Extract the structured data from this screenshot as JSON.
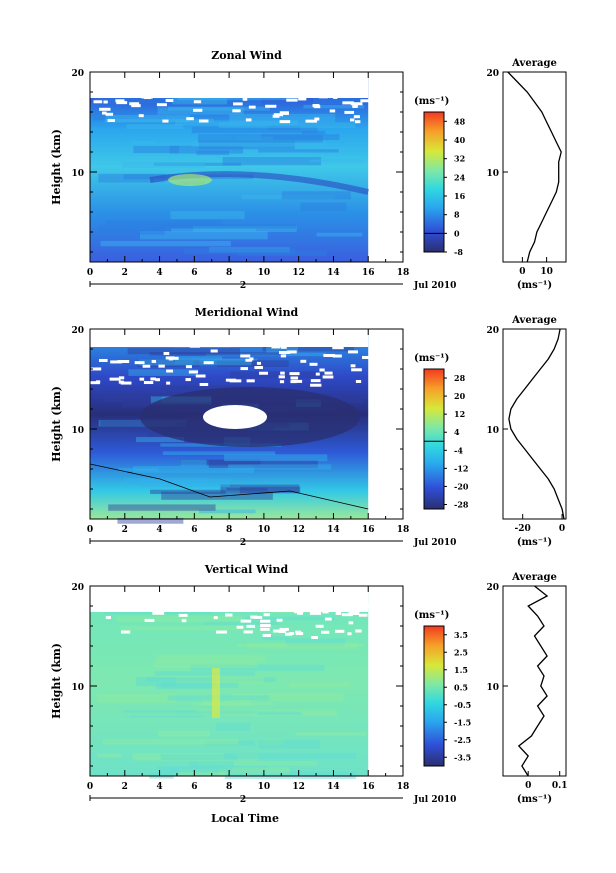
{
  "figure": {
    "date_label": "Jul 2010",
    "day_label": "2",
    "xlabel": "Local Time",
    "ylabel": "Height (km)",
    "unit_label": "(ms⁻¹)",
    "average_title": "Average"
  },
  "chart_data": [
    {
      "type": "heatmap",
      "title": "Zonal Wind",
      "xlabel": "Local Time",
      "ylabel": "Height (km)",
      "xlim": [
        0,
        18
      ],
      "ylim": [
        1,
        20
      ],
      "x_ticks": [
        0,
        2,
        4,
        6,
        8,
        10,
        12,
        14,
        16,
        18
      ],
      "y_ticks": [
        10,
        20
      ],
      "data_xmax": 16,
      "colorbar": {
        "label": "(ms⁻¹)",
        "ticks": [
          48,
          40,
          32,
          24,
          16,
          8,
          0,
          -8
        ],
        "min": -8,
        "max": 52,
        "divider": 0
      },
      "profile": {
        "title": "Average",
        "xlabel": "(ms⁻¹)",
        "x_ticks": [
          0,
          10
        ],
        "xlim": [
          -8,
          18
        ],
        "heights": [
          1,
          2,
          3,
          4,
          5,
          6,
          7,
          8,
          9,
          10,
          11,
          12,
          13,
          14,
          15,
          16,
          17,
          18,
          19,
          20
        ],
        "values": [
          2,
          3,
          5,
          6,
          8,
          10,
          12,
          14,
          15,
          15,
          15,
          16,
          14,
          12,
          10,
          8,
          5,
          2,
          -2,
          -6
        ]
      }
    },
    {
      "type": "heatmap",
      "title": "Meridional Wind",
      "xlabel": "Local Time",
      "ylabel": "Height (km)",
      "xlim": [
        0,
        18
      ],
      "ylim": [
        1,
        20
      ],
      "x_ticks": [
        0,
        2,
        4,
        6,
        8,
        10,
        12,
        14,
        16,
        18
      ],
      "y_ticks": [
        10,
        20
      ],
      "data_xmax": 16,
      "colorbar": {
        "label": "(ms⁻¹)",
        "ticks": [
          28,
          20,
          12,
          4,
          -4,
          -12,
          -20,
          -28
        ],
        "min": -30,
        "max": 32,
        "divider": 0
      },
      "profile": {
        "title": "Average",
        "xlabel": "(ms⁻¹)",
        "x_ticks": [
          -20,
          0
        ],
        "xlim": [
          -30,
          2
        ],
        "heights": [
          1,
          2,
          3,
          4,
          5,
          6,
          7,
          8,
          9,
          10,
          11,
          12,
          13,
          14,
          15,
          16,
          17,
          18,
          19,
          20
        ],
        "values": [
          1,
          0,
          -2,
          -4,
          -7,
          -11,
          -15,
          -19,
          -23,
          -26,
          -27,
          -26,
          -23,
          -19,
          -15,
          -11,
          -7,
          -4,
          -2,
          -1
        ]
      }
    },
    {
      "type": "heatmap",
      "title": "Vertical Wind",
      "xlabel": "Local Time",
      "ylabel": "Height (km)",
      "xlim": [
        0,
        18
      ],
      "ylim": [
        1,
        20
      ],
      "x_ticks": [
        0,
        2,
        4,
        6,
        8,
        10,
        12,
        14,
        16,
        18
      ],
      "y_ticks": [
        10,
        20
      ],
      "data_xmax": 16,
      "colorbar": {
        "label": "(ms⁻¹)",
        "ticks": [
          3.5,
          2.5,
          1.5,
          0.5,
          -0.5,
          -1.5,
          -2.5,
          -3.5
        ],
        "min": -4,
        "max": 4,
        "divider": null
      },
      "profile": {
        "title": "Average",
        "xlabel": "(ms⁻¹)",
        "x_ticks": [
          0.0,
          0.1
        ],
        "xlim": [
          -0.08,
          0.12
        ],
        "heights": [
          1,
          2,
          3,
          4,
          5,
          6,
          7,
          8,
          9,
          10,
          11,
          12,
          13,
          14,
          15,
          16,
          17,
          18,
          19,
          20
        ],
        "values": [
          0.0,
          -0.02,
          0.0,
          -0.03,
          0.01,
          0.03,
          0.05,
          0.03,
          0.06,
          0.04,
          0.05,
          0.03,
          0.06,
          0.04,
          0.02,
          0.05,
          0.03,
          0.0,
          0.06,
          0.02
        ]
      }
    }
  ]
}
